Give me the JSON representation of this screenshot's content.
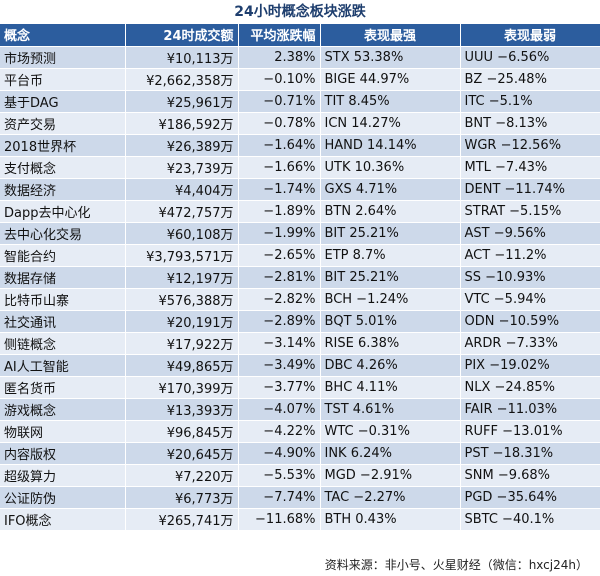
{
  "title": "24小时概念板块涨跌",
  "headers": [
    "概念",
    "24时成交额",
    "平均涨跌幅",
    "表现最强",
    "表现最弱"
  ],
  "rows": [
    {
      "name": "市场预测",
      "volume": "¥10,113万",
      "change": "2.38%",
      "best": "STX 53.38%",
      "worst": "UUU −6.56%"
    },
    {
      "name": "平台币",
      "volume": "¥2,662,358万",
      "change": "−0.10%",
      "best": "BIGE 44.97%",
      "worst": "BZ −25.48%"
    },
    {
      "name": "基于DAG",
      "volume": "¥25,961万",
      "change": "−0.71%",
      "best": "TIT 8.45%",
      "worst": "ITC −5.1%"
    },
    {
      "name": "资产交易",
      "volume": "¥186,592万",
      "change": "−0.78%",
      "best": "ICN 14.27%",
      "worst": "BNT −8.13%"
    },
    {
      "name": "2018世界杯",
      "volume": "¥26,389万",
      "change": "−1.64%",
      "best": "HAND 14.14%",
      "worst": "WGR −12.56%"
    },
    {
      "name": "支付概念",
      "volume": "¥23,739万",
      "change": "−1.66%",
      "best": "UTK 10.36%",
      "worst": "MTL −7.43%"
    },
    {
      "name": "数据经济",
      "volume": "¥4,404万",
      "change": "−1.74%",
      "best": "GXS 4.71%",
      "worst": "DENT −11.74%"
    },
    {
      "name": "Dapp去中心化",
      "volume": "¥472,757万",
      "change": "−1.89%",
      "best": "BTN 2.64%",
      "worst": "STRAT −5.15%"
    },
    {
      "name": "去中心化交易",
      "volume": "¥60,108万",
      "change": "−1.99%",
      "best": "BIT 25.21%",
      "worst": "AST −9.56%"
    },
    {
      "name": "智能合约",
      "volume": "¥3,793,571万",
      "change": "−2.65%",
      "best": "ETP 8.7%",
      "worst": "ACT −11.2%"
    },
    {
      "name": "数据存储",
      "volume": "¥12,197万",
      "change": "−2.81%",
      "best": "BIT 25.21%",
      "worst": "SS −10.93%"
    },
    {
      "name": "比特币山寨",
      "volume": "¥576,388万",
      "change": "−2.82%",
      "best": "BCH −1.24%",
      "worst": "VTC −5.94%"
    },
    {
      "name": "社交通讯",
      "volume": "¥20,191万",
      "change": "−2.89%",
      "best": "BQT 5.01%",
      "worst": "ODN −10.59%"
    },
    {
      "name": "侧链概念",
      "volume": "¥17,922万",
      "change": "−3.14%",
      "best": "RISE 6.38%",
      "worst": "ARDR −7.33%"
    },
    {
      "name": "AI人工智能",
      "volume": "¥49,865万",
      "change": "−3.49%",
      "best": "DBC 4.26%",
      "worst": "PIX −19.02%"
    },
    {
      "name": "匿名货币",
      "volume": "¥170,399万",
      "change": "−3.77%",
      "best": "BHC 4.11%",
      "worst": "NLX −24.85%"
    },
    {
      "name": "游戏概念",
      "volume": "¥13,393万",
      "change": "−4.07%",
      "best": "TST 4.61%",
      "worst": "FAIR −11.03%"
    },
    {
      "name": "物联网",
      "volume": "¥96,845万",
      "change": "−4.22%",
      "best": "WTC −0.31%",
      "worst": "RUFF −13.01%"
    },
    {
      "name": "内容版权",
      "volume": "¥20,645万",
      "change": "−4.90%",
      "best": "INK 6.24%",
      "worst": "PST −18.31%"
    },
    {
      "name": "超级算力",
      "volume": "¥7,220万",
      "change": "−5.53%",
      "best": "MGD −2.91%",
      "worst": "SNM −9.68%"
    },
    {
      "name": "公证防伪",
      "volume": "¥6,773万",
      "change": "−7.74%",
      "best": "TAC −2.27%",
      "worst": "PGD −35.64%"
    },
    {
      "name": "IFO概念",
      "volume": "¥265,741万",
      "change": "−11.68%",
      "best": "BTH 0.43%",
      "worst": "SBTC −40.1%"
    }
  ],
  "source": "资料来源：非小号、火星财经（微信：hxcj24h）"
}
